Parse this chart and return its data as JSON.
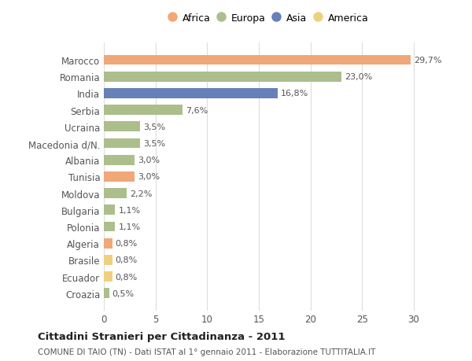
{
  "countries": [
    "Marocco",
    "Romania",
    "India",
    "Serbia",
    "Ucraina",
    "Macedonia d/N.",
    "Albania",
    "Tunisia",
    "Moldova",
    "Bulgaria",
    "Polonia",
    "Algeria",
    "Brasile",
    "Ecuador",
    "Croazia"
  ],
  "values": [
    29.7,
    23.0,
    16.8,
    7.6,
    3.5,
    3.5,
    3.0,
    3.0,
    2.2,
    1.1,
    1.1,
    0.8,
    0.8,
    0.8,
    0.5
  ],
  "labels": [
    "29,7%",
    "23,0%",
    "16,8%",
    "7,6%",
    "3,5%",
    "3,5%",
    "3,0%",
    "3,0%",
    "2,2%",
    "1,1%",
    "1,1%",
    "0,8%",
    "0,8%",
    "0,8%",
    "0,5%"
  ],
  "continents": [
    "Africa",
    "Europa",
    "Asia",
    "Europa",
    "Europa",
    "Europa",
    "Europa",
    "Africa",
    "Europa",
    "Europa",
    "Europa",
    "Africa",
    "America",
    "America",
    "Europa"
  ],
  "colors": {
    "Africa": "#F0A878",
    "Europa": "#ABBE8C",
    "Asia": "#6680B8",
    "America": "#F0D080"
  },
  "background_color": "#FFFFFF",
  "grid_color": "#DDDDDD",
  "title": "Cittadini Stranieri per Cittadinanza - 2011",
  "subtitle": "COMUNE DI TAIO (TN) - Dati ISTAT al 1° gennaio 2011 - Elaborazione TUTTITALIA.IT",
  "xlim": [
    0,
    32
  ],
  "xticks": [
    0,
    5,
    10,
    15,
    20,
    25,
    30
  ],
  "legend_order": [
    "Africa",
    "Europa",
    "Asia",
    "America"
  ]
}
